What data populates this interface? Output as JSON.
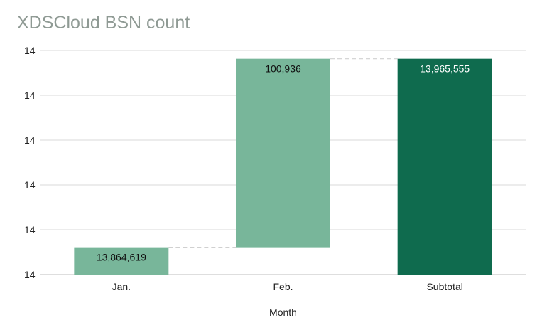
{
  "chart_data": {
    "type": "bar",
    "subtype": "waterfall",
    "title": "XDSCloud BSN count",
    "xlabel": "Month",
    "ylabel": "",
    "categories": [
      "Jan.",
      "Feb.",
      "Subtotal"
    ],
    "values": [
      13864619,
      100936,
      13965555
    ],
    "data_labels": [
      "13,864,619",
      "100,936",
      "13,965,555"
    ],
    "kinds": [
      "increase",
      "increase",
      "subtotal"
    ],
    "y_tick_labels": [
      "14",
      "14",
      "14",
      "14",
      "14",
      "14"
    ],
    "ylim": [
      13850000,
      13970000
    ],
    "grid": true,
    "colors": {
      "increase": "#78b69a",
      "subtotal": "#0f6b4e",
      "connector": "#d0d0d0",
      "grid": "#d9d9d9",
      "baseline": "#bdbdbd",
      "title": "#8f9a94",
      "label_dark": "#111111",
      "label_light": "#ffffff"
    }
  }
}
